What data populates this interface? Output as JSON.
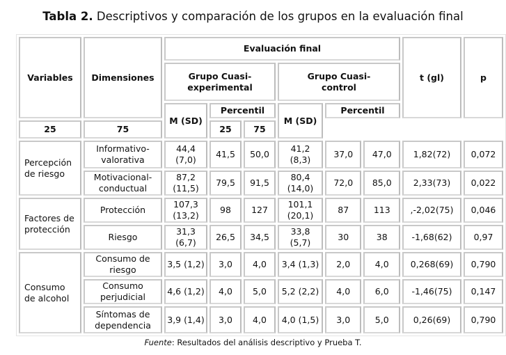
{
  "title": {
    "bold": "Tabla 2.",
    "text": " Descriptivos y comparación de los grupos en la evaluación final"
  },
  "headers": {
    "variables": "Variables",
    "dimensiones": "Dimensiones",
    "evaluacion": "Evaluación final",
    "grupo_exp": "Grupo Cuasi-experimental",
    "grupo_ctrl": "Grupo Cuasi-control",
    "t": "t (gl)",
    "p": "p",
    "m_sd": "M (SD)",
    "percentil": "Percentil",
    "p25": "25",
    "p75": "75"
  },
  "variables": [
    "Percepción de riesgo",
    "Factores de protección",
    "Consumo de alcohol"
  ],
  "rows": [
    {
      "dim": "Informativo-valorativa",
      "m1": "44,4 (7,0)",
      "a25": "41,5",
      "a75": "50,0",
      "m2": "41,2 (8,3)",
      "b25": "37,0",
      "b75": "47,0",
      "t": "1,82(72)",
      "p": "0,072"
    },
    {
      "dim": "Motivacional-conductual",
      "m1": "87,2 (11,5)",
      "a25": "79,5",
      "a75": "91,5",
      "m2": "80,4 (14,0)",
      "b25": "72,0",
      "b75": "85,0",
      "t": "2,33(73)",
      "p": "0,022"
    },
    {
      "dim": "Protección",
      "m1": "107,3 (13,2)",
      "a25": "98",
      "a75": "127",
      "m2": "101,1 (20,1)",
      "b25": "87",
      "b75": "113",
      "t": ",-2,02(75)",
      "p": "0,046"
    },
    {
      "dim": "Riesgo",
      "m1": "31,3 (6,7)",
      "a25": "26,5",
      "a75": "34,5",
      "m2": "33,8 (5,7)",
      "b25": "30",
      "b75": "38",
      "t": "-1,68(62)",
      "p": "0,97"
    },
    {
      "dim": "Consumo de riesgo",
      "m1": "3,5 (1,2)",
      "a25": "3,0",
      "a75": "4,0",
      "m2": "3,4 (1,3)",
      "b25": "2,0",
      "b75": "4,0",
      "t": "0,268(69)",
      "p": "0,790"
    },
    {
      "dim": "Consumo perjudicial",
      "m1": "4,6 (1,2)",
      "a25": "4,0",
      "a75": "5,0",
      "m2": "5,2 (2,2)",
      "b25": "4,0",
      "b75": "6,0",
      "t": "-1,46(75)",
      "p": "0,147"
    },
    {
      "dim": "Síntomas de dependencia",
      "m1": "3,9 (1,4)",
      "a25": "3,0",
      "a75": "4,0",
      "m2": "4,0 (1,5)",
      "b25": "3,0",
      "b75": "5,0",
      "t": "0,26(69)",
      "p": "0,790"
    }
  ],
  "footer": {
    "label": "Fuente",
    "text": ": Resultados del análisis descriptivo y Prueba T."
  }
}
